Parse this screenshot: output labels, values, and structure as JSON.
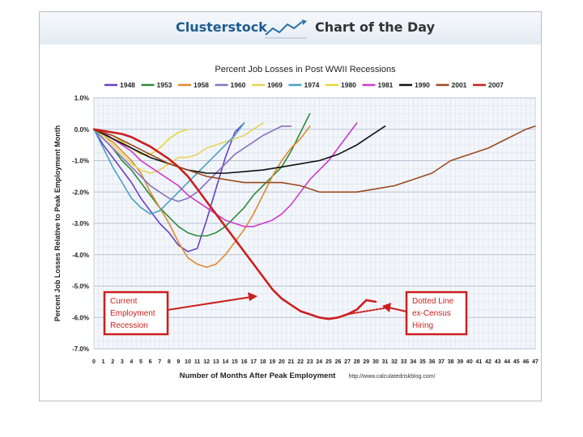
{
  "banner": {
    "brand": "Clusterstock",
    "tagline": "Chart of the Day"
  },
  "chart_data": {
    "type": "line",
    "title": "Percent Job Losses in Post WWII Recessions",
    "xlabel": "Number of Months After Peak Employment",
    "ylabel": "Percent Job Losses Relative to Peak Employment Month",
    "source": "http://www.calculatedriskblog.com/",
    "xlim": [
      0,
      47
    ],
    "ylim": [
      -7.0,
      1.0
    ],
    "x_ticks": [
      "0",
      "1",
      "2",
      "3",
      "4",
      "5",
      "6",
      "7",
      "8",
      "9",
      "10",
      "11",
      "12",
      "13",
      "14",
      "15",
      "16",
      "17",
      "18",
      "19",
      "20",
      "21",
      "22",
      "23",
      "24",
      "25",
      "26",
      "27",
      "28",
      "29",
      "30",
      "31",
      "32",
      "33",
      "34",
      "35",
      "36",
      "37",
      "38",
      "39",
      "40",
      "41",
      "42",
      "43",
      "44",
      "45",
      "46",
      "47"
    ],
    "y_ticks": [
      "1.0%",
      "0.0%",
      "-1.0%",
      "-2.0%",
      "-3.0%",
      "-4.0%",
      "-5.0%",
      "-6.0%",
      "-7.0%"
    ],
    "y_tick_values": [
      1,
      0,
      -1,
      -2,
      -3,
      -4,
      -5,
      -6,
      -7
    ],
    "grid": true,
    "legend_position": "top",
    "series": [
      {
        "name": "1948",
        "color": "#6a3fc4",
        "width": 1.6,
        "points": [
          [
            0,
            0
          ],
          [
            1,
            -0.5
          ],
          [
            2,
            -0.9
          ],
          [
            3,
            -1.3
          ],
          [
            4,
            -1.7
          ],
          [
            5,
            -2.2
          ],
          [
            6,
            -2.6
          ],
          [
            7,
            -3.0
          ],
          [
            8,
            -3.3
          ],
          [
            9,
            -3.7
          ],
          [
            10,
            -3.9
          ],
          [
            11,
            -3.8
          ],
          [
            12,
            -2.9
          ],
          [
            13,
            -1.9
          ],
          [
            14,
            -0.9
          ],
          [
            15,
            -0.1
          ],
          [
            16,
            0.2
          ]
        ]
      },
      {
        "name": "1953",
        "color": "#2e8b3a",
        "width": 1.6,
        "points": [
          [
            0,
            0
          ],
          [
            1,
            -0.3
          ],
          [
            2,
            -0.6
          ],
          [
            3,
            -1.0
          ],
          [
            4,
            -1.3
          ],
          [
            5,
            -1.7
          ],
          [
            6,
            -2.1
          ],
          [
            7,
            -2.5
          ],
          [
            8,
            -2.8
          ],
          [
            9,
            -3.1
          ],
          [
            10,
            -3.3
          ],
          [
            11,
            -3.4
          ],
          [
            12,
            -3.4
          ],
          [
            13,
            -3.3
          ],
          [
            14,
            -3.1
          ],
          [
            15,
            -2.8
          ],
          [
            16,
            -2.5
          ],
          [
            17,
            -2.1
          ],
          [
            18,
            -1.8
          ],
          [
            19,
            -1.5
          ],
          [
            20,
            -1.2
          ],
          [
            21,
            -0.7
          ],
          [
            22,
            -0.1
          ],
          [
            23,
            0.5
          ]
        ]
      },
      {
        "name": "1958",
        "color": "#e08a2c",
        "width": 1.6,
        "points": [
          [
            0,
            0
          ],
          [
            1,
            -0.2
          ],
          [
            2,
            -0.4
          ],
          [
            3,
            -0.7
          ],
          [
            4,
            -1.0
          ],
          [
            5,
            -1.4
          ],
          [
            6,
            -2.0
          ],
          [
            7,
            -2.5
          ],
          [
            8,
            -3.0
          ],
          [
            9,
            -3.6
          ],
          [
            10,
            -4.1
          ],
          [
            11,
            -4.3
          ],
          [
            12,
            -4.4
          ],
          [
            13,
            -4.3
          ],
          [
            14,
            -4.0
          ],
          [
            15,
            -3.6
          ],
          [
            16,
            -3.2
          ],
          [
            17,
            -2.7
          ],
          [
            18,
            -2.1
          ],
          [
            19,
            -1.5
          ],
          [
            20,
            -1.0
          ],
          [
            21,
            -0.6
          ],
          [
            22,
            -0.3
          ],
          [
            23,
            0.1
          ]
        ]
      },
      {
        "name": "1960",
        "color": "#8a6fbf",
        "width": 1.6,
        "points": [
          [
            0,
            0
          ],
          [
            1,
            -0.3
          ],
          [
            2,
            -0.6
          ],
          [
            3,
            -0.9
          ],
          [
            4,
            -1.2
          ],
          [
            5,
            -1.5
          ],
          [
            6,
            -1.8
          ],
          [
            7,
            -2.0
          ],
          [
            8,
            -2.2
          ],
          [
            9,
            -2.3
          ],
          [
            10,
            -2.2
          ],
          [
            11,
            -2.0
          ],
          [
            12,
            -1.7
          ],
          [
            13,
            -1.4
          ],
          [
            14,
            -1.1
          ],
          [
            15,
            -0.8
          ],
          [
            16,
            -0.6
          ],
          [
            17,
            -0.4
          ],
          [
            18,
            -0.2
          ],
          [
            19,
            -0.05
          ],
          [
            20,
            0.1
          ],
          [
            21,
            0.1
          ]
        ]
      },
      {
        "name": "1969",
        "color": "#e6d35a",
        "width": 1.6,
        "points": [
          [
            0,
            0
          ],
          [
            1,
            -0.2
          ],
          [
            2,
            -0.5
          ],
          [
            3,
            -0.8
          ],
          [
            4,
            -1.1
          ],
          [
            5,
            -1.3
          ],
          [
            6,
            -1.4
          ],
          [
            7,
            -1.3
          ],
          [
            8,
            -1.1
          ],
          [
            9,
            -0.9
          ],
          [
            10,
            -0.9
          ],
          [
            11,
            -0.8
          ],
          [
            12,
            -0.6
          ],
          [
            13,
            -0.5
          ],
          [
            14,
            -0.4
          ],
          [
            15,
            -0.3
          ],
          [
            16,
            -0.2
          ],
          [
            17,
            0.0
          ],
          [
            18,
            0.2
          ]
        ]
      },
      {
        "name": "1974",
        "color": "#4aa0c4",
        "width": 1.6,
        "points": [
          [
            0,
            0
          ],
          [
            1,
            -0.6
          ],
          [
            2,
            -1.2
          ],
          [
            3,
            -1.7
          ],
          [
            4,
            -2.2
          ],
          [
            5,
            -2.5
          ],
          [
            6,
            -2.7
          ],
          [
            7,
            -2.6
          ],
          [
            8,
            -2.3
          ],
          [
            9,
            -2.0
          ],
          [
            10,
            -1.7
          ],
          [
            11,
            -1.4
          ],
          [
            12,
            -1.1
          ],
          [
            13,
            -0.8
          ],
          [
            14,
            -0.5
          ],
          [
            15,
            -0.2
          ],
          [
            16,
            0.2
          ]
        ]
      },
      {
        "name": "1980",
        "color": "#e6d83c",
        "width": 1.6,
        "points": [
          [
            0,
            0
          ],
          [
            1,
            -0.1
          ],
          [
            2,
            -0.2
          ],
          [
            3,
            -0.4
          ],
          [
            4,
            -0.6
          ],
          [
            5,
            -0.8
          ],
          [
            6,
            -0.8
          ],
          [
            7,
            -0.6
          ],
          [
            8,
            -0.3
          ],
          [
            9,
            -0.1
          ],
          [
            10,
            0.0
          ]
        ]
      },
      {
        "name": "1981",
        "color": "#cc3cc8",
        "width": 1.6,
        "points": [
          [
            0,
            0
          ],
          [
            1,
            -0.1
          ],
          [
            2,
            -0.3
          ],
          [
            3,
            -0.5
          ],
          [
            4,
            -0.7
          ],
          [
            5,
            -1.0
          ],
          [
            6,
            -1.2
          ],
          [
            7,
            -1.4
          ],
          [
            8,
            -1.6
          ],
          [
            9,
            -1.8
          ],
          [
            10,
            -2.1
          ],
          [
            11,
            -2.3
          ],
          [
            12,
            -2.5
          ],
          [
            13,
            -2.7
          ],
          [
            14,
            -2.9
          ],
          [
            15,
            -3.0
          ],
          [
            16,
            -3.1
          ],
          [
            17,
            -3.1
          ],
          [
            18,
            -3.0
          ],
          [
            19,
            -2.9
          ],
          [
            20,
            -2.7
          ],
          [
            21,
            -2.4
          ],
          [
            22,
            -2.0
          ],
          [
            23,
            -1.6
          ],
          [
            24,
            -1.3
          ],
          [
            25,
            -1.0
          ],
          [
            26,
            -0.6
          ],
          [
            27,
            -0.2
          ],
          [
            28,
            0.2
          ]
        ]
      },
      {
        "name": "1990",
        "color": "#111111",
        "width": 1.6,
        "points": [
          [
            0,
            0
          ],
          [
            2,
            -0.3
          ],
          [
            4,
            -0.6
          ],
          [
            6,
            -0.9
          ],
          [
            8,
            -1.1
          ],
          [
            10,
            -1.3
          ],
          [
            12,
            -1.4
          ],
          [
            14,
            -1.4
          ],
          [
            16,
            -1.35
          ],
          [
            18,
            -1.3
          ],
          [
            20,
            -1.2
          ],
          [
            22,
            -1.1
          ],
          [
            24,
            -1.0
          ],
          [
            26,
            -0.8
          ],
          [
            28,
            -0.5
          ],
          [
            30,
            -0.1
          ],
          [
            31,
            0.1
          ]
        ]
      },
      {
        "name": "2001",
        "color": "#9b4a1f",
        "width": 1.6,
        "points": [
          [
            0,
            0
          ],
          [
            2,
            -0.2
          ],
          [
            4,
            -0.5
          ],
          [
            6,
            -0.8
          ],
          [
            8,
            -1.1
          ],
          [
            10,
            -1.3
          ],
          [
            12,
            -1.5
          ],
          [
            14,
            -1.6
          ],
          [
            16,
            -1.7
          ],
          [
            18,
            -1.7
          ],
          [
            20,
            -1.7
          ],
          [
            22,
            -1.8
          ],
          [
            24,
            -2.0
          ],
          [
            26,
            -2.0
          ],
          [
            28,
            -2.0
          ],
          [
            30,
            -1.9
          ],
          [
            32,
            -1.8
          ],
          [
            34,
            -1.6
          ],
          [
            36,
            -1.4
          ],
          [
            38,
            -1.0
          ],
          [
            40,
            -0.8
          ],
          [
            42,
            -0.6
          ],
          [
            44,
            -0.3
          ],
          [
            46,
            0.0
          ],
          [
            47,
            0.1
          ]
        ]
      },
      {
        "name": "2007",
        "color": "#cc1f1f",
        "width": 2.6,
        "points": [
          [
            0,
            0
          ],
          [
            1,
            -0.05
          ],
          [
            2,
            -0.1
          ],
          [
            3,
            -0.15
          ],
          [
            4,
            -0.25
          ],
          [
            5,
            -0.4
          ],
          [
            6,
            -0.55
          ],
          [
            7,
            -0.75
          ],
          [
            8,
            -0.95
          ],
          [
            9,
            -1.2
          ],
          [
            10,
            -1.5
          ],
          [
            11,
            -1.9
          ],
          [
            12,
            -2.3
          ],
          [
            13,
            -2.7
          ],
          [
            14,
            -3.1
          ],
          [
            15,
            -3.5
          ],
          [
            16,
            -3.9
          ],
          [
            17,
            -4.3
          ],
          [
            18,
            -4.7
          ],
          [
            19,
            -5.1
          ],
          [
            20,
            -5.4
          ],
          [
            21,
            -5.6
          ],
          [
            22,
            -5.8
          ],
          [
            23,
            -5.9
          ],
          [
            24,
            -6.0
          ],
          [
            25,
            -6.05
          ],
          [
            26,
            -6.0
          ],
          [
            27,
            -5.9
          ],
          [
            28,
            -5.75
          ],
          [
            29,
            -5.45
          ],
          [
            30,
            -5.5
          ]
        ]
      },
      {
        "name": "2007 ex-Census (dotted)",
        "color": "#cc1f1f",
        "width": 2.0,
        "dashed": true,
        "legend": false,
        "points": [
          [
            27,
            -5.9
          ],
          [
            28,
            -5.85
          ],
          [
            29,
            -5.8
          ],
          [
            30,
            -5.75
          ],
          [
            31,
            -5.7
          ]
        ]
      }
    ],
    "annotations": [
      {
        "id": "current",
        "lines": [
          "Current",
          "Employment",
          "Recession"
        ]
      },
      {
        "id": "dotted",
        "lines": [
          "Dotted Line",
          "ex-Census",
          "Hiring"
        ]
      }
    ]
  }
}
